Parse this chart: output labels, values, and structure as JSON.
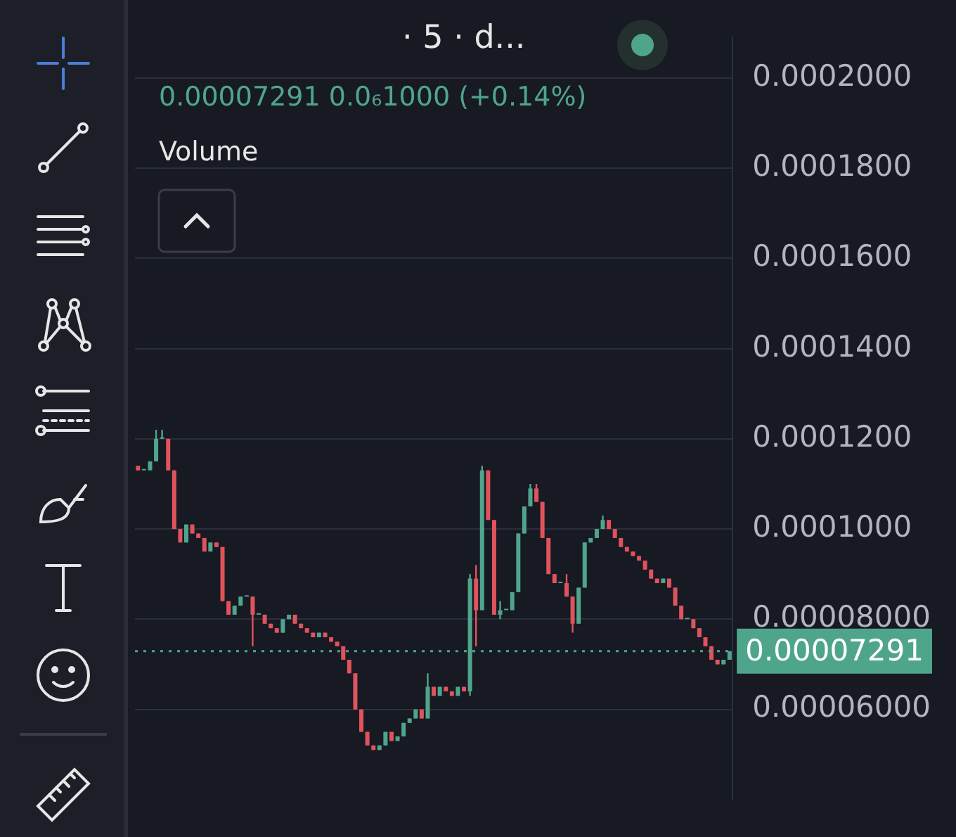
{
  "chart_data": {
    "type": "candlestick",
    "title": "· 5 · d...",
    "annotations": [
      "0.00007291 0.0₆1000 (+0.14%)",
      "Volume"
    ],
    "categories": [
      null,
      null,
      null,
      null,
      null,
      null,
      null,
      null,
      null,
      null,
      null,
      null,
      null,
      null,
      null,
      null,
      null,
      null,
      null,
      null,
      null,
      null,
      null,
      null,
      null,
      null,
      null,
      null,
      null,
      null,
      null,
      null,
      null,
      null,
      null,
      null,
      null,
      null,
      null,
      null,
      null,
      null,
      null,
      null,
      null,
      null,
      null,
      null,
      null,
      null,
      null,
      null,
      null,
      null,
      null,
      null,
      null,
      null,
      null,
      null,
      null,
      null,
      null,
      null,
      null,
      null,
      null,
      null,
      null,
      null,
      null,
      null,
      null,
      null,
      null,
      null,
      null,
      null,
      null,
      null,
      null,
      null,
      null,
      null,
      null,
      null,
      null,
      null,
      null,
      null,
      null,
      null,
      null,
      null,
      null,
      null,
      null,
      null,
      null
    ],
    "ohlc": [
      [
        0.000114,
        0.000114,
        0.000113,
        0.000113
      ],
      [
        0.000113,
        0.000113,
        0.000113,
        0.000113
      ],
      [
        0.000113,
        0.000115,
        0.000113,
        0.000115
      ],
      [
        0.000115,
        0.000122,
        0.000115,
        0.00012
      ],
      [
        0.00012,
        0.000122,
        0.00012,
        0.00012
      ],
      [
        0.00012,
        0.00012,
        0.000113,
        0.000113
      ],
      [
        0.000113,
        0.000113,
        0.0001,
        0.0001
      ],
      [
        0.0001,
        0.0001,
        9.7e-05,
        9.7e-05
      ],
      [
        9.7e-05,
        0.000101,
        9.7e-05,
        0.000101
      ],
      [
        0.000101,
        0.000101,
        9.9e-05,
        9.9e-05
      ],
      [
        9.9e-05,
        9.9e-05,
        9.8e-05,
        9.8e-05
      ],
      [
        9.8e-05,
        9.8e-05,
        9.5e-05,
        9.5e-05
      ],
      [
        9.5e-05,
        9.7e-05,
        9.5e-05,
        9.7e-05
      ],
      [
        9.7e-05,
        9.7e-05,
        9.6e-05,
        9.6e-05
      ],
      [
        9.6e-05,
        9.6e-05,
        8.4e-05,
        8.4e-05
      ],
      [
        8.4e-05,
        8.4e-05,
        8.1e-05,
        8.1e-05
      ],
      [
        8.1e-05,
        8.3e-05,
        8.1e-05,
        8.3e-05
      ],
      [
        8.3e-05,
        8.5e-05,
        8.3e-05,
        8.5e-05
      ],
      [
        8.5e-05,
        8.5e-05,
        8.5e-05,
        8.5e-05
      ],
      [
        8.5e-05,
        8.5e-05,
        7.4e-05,
        8.1e-05
      ],
      [
        8.1e-05,
        8.1e-05,
        8.1e-05,
        8.1e-05
      ],
      [
        8.1e-05,
        8.1e-05,
        7.9e-05,
        7.9e-05
      ],
      [
        7.9e-05,
        7.9e-05,
        7.8e-05,
        7.8e-05
      ],
      [
        7.8e-05,
        7.8e-05,
        7.7e-05,
        7.7e-05
      ],
      [
        7.7e-05,
        8e-05,
        7.7e-05,
        8e-05
      ],
      [
        8e-05,
        8.1e-05,
        8e-05,
        8.1e-05
      ],
      [
        8.1e-05,
        8.1e-05,
        7.9e-05,
        7.9e-05
      ],
      [
        7.9e-05,
        7.9e-05,
        7.8e-05,
        7.8e-05
      ],
      [
        7.8e-05,
        7.8e-05,
        7.7e-05,
        7.7e-05
      ],
      [
        7.7e-05,
        7.7e-05,
        7.6e-05,
        7.6e-05
      ],
      [
        7.6e-05,
        7.7e-05,
        7.6e-05,
        7.7e-05
      ],
      [
        7.7e-05,
        7.7e-05,
        7.6e-05,
        7.6e-05
      ],
      [
        7.6e-05,
        7.6e-05,
        7.5e-05,
        7.5e-05
      ],
      [
        7.5e-05,
        7.5e-05,
        7.4e-05,
        7.4e-05
      ],
      [
        7.4e-05,
        7.4e-05,
        7.1e-05,
        7.1e-05
      ],
      [
        7.1e-05,
        7.1e-05,
        6.8e-05,
        6.8e-05
      ],
      [
        6.8e-05,
        6.8e-05,
        6e-05,
        6e-05
      ],
      [
        6e-05,
        6e-05,
        5.5e-05,
        5.5e-05
      ],
      [
        5.5e-05,
        5.5e-05,
        5.2e-05,
        5.2e-05
      ],
      [
        5.2e-05,
        5.2e-05,
        5.1e-05,
        5.1e-05
      ],
      [
        5.1e-05,
        5.2e-05,
        5.1e-05,
        5.2e-05
      ],
      [
        5.2e-05,
        5.5e-05,
        5.2e-05,
        5.5e-05
      ],
      [
        5.5e-05,
        5.5e-05,
        5.3e-05,
        5.3e-05
      ],
      [
        5.3e-05,
        5.4e-05,
        5.3e-05,
        5.4e-05
      ],
      [
        5.4e-05,
        5.7e-05,
        5.4e-05,
        5.7e-05
      ],
      [
        5.7e-05,
        5.8e-05,
        5.7e-05,
        5.8e-05
      ],
      [
        5.8e-05,
        6e-05,
        5.8e-05,
        6e-05
      ],
      [
        6e-05,
        6e-05,
        5.8e-05,
        5.8e-05
      ],
      [
        5.8e-05,
        6.8e-05,
        5.8e-05,
        6.5e-05
      ],
      [
        6.5e-05,
        6.5e-05,
        6.3e-05,
        6.3e-05
      ],
      [
        6.3e-05,
        6.5e-05,
        6.3e-05,
        6.5e-05
      ],
      [
        6.5e-05,
        6.5e-05,
        6.4e-05,
        6.4e-05
      ],
      [
        6.4e-05,
        6.4e-05,
        6.3e-05,
        6.3e-05
      ],
      [
        6.3e-05,
        6.5e-05,
        6.3e-05,
        6.5e-05
      ],
      [
        6.5e-05,
        6.5e-05,
        6.4e-05,
        6.4e-05
      ],
      [
        6.4e-05,
        9e-05,
        6.3e-05,
        8.9e-05
      ],
      [
        8.9e-05,
        9.2e-05,
        7.4e-05,
        8.2e-05
      ],
      [
        8.2e-05,
        0.000114,
        8.2e-05,
        0.000113
      ],
      [
        0.000113,
        0.000113,
        0.000102,
        0.000102
      ],
      [
        0.000102,
        0.000102,
        8.1e-05,
        8.1e-05
      ],
      [
        8.1e-05,
        8.4e-05,
        8e-05,
        8.2e-05
      ],
      [
        8.2e-05,
        8.2e-05,
        8.2e-05,
        8.2e-05
      ],
      [
        8.2e-05,
        8.6e-05,
        8.2e-05,
        8.6e-05
      ],
      [
        8.6e-05,
        9.9e-05,
        8.6e-05,
        9.9e-05
      ],
      [
        9.9e-05,
        0.000105,
        9.9e-05,
        0.000105
      ],
      [
        0.000105,
        0.00011,
        0.000105,
        0.000109
      ],
      [
        0.000109,
        0.00011,
        0.000106,
        0.000106
      ],
      [
        0.000106,
        0.000106,
        9.8e-05,
        9.8e-05
      ],
      [
        9.8e-05,
        9.8e-05,
        9e-05,
        9e-05
      ],
      [
        9e-05,
        9e-05,
        8.8e-05,
        8.8e-05
      ],
      [
        8.8e-05,
        8.8e-05,
        8.8e-05,
        8.8e-05
      ],
      [
        8.8e-05,
        9e-05,
        8.5e-05,
        8.5e-05
      ],
      [
        8.5e-05,
        8.5e-05,
        7.7e-05,
        7.9e-05
      ],
      [
        7.9e-05,
        8.7e-05,
        7.9e-05,
        8.7e-05
      ],
      [
        8.7e-05,
        9.7e-05,
        8.7e-05,
        9.7e-05
      ],
      [
        9.7e-05,
        9.8e-05,
        9.7e-05,
        9.8e-05
      ],
      [
        9.8e-05,
        0.0001,
        9.8e-05,
        0.0001
      ],
      [
        0.0001,
        0.000103,
        0.0001,
        0.000102
      ],
      [
        0.000102,
        0.000102,
        0.0001,
        0.0001
      ],
      [
        0.0001,
        0.0001,
        9.8e-05,
        9.8e-05
      ],
      [
        9.8e-05,
        9.8e-05,
        9.6e-05,
        9.6e-05
      ],
      [
        9.6e-05,
        9.6e-05,
        9.5e-05,
        9.5e-05
      ],
      [
        9.5e-05,
        9.5e-05,
        9.4e-05,
        9.4e-05
      ],
      [
        9.4e-05,
        9.4e-05,
        9.3e-05,
        9.3e-05
      ],
      [
        9.3e-05,
        9.3e-05,
        9.1e-05,
        9.1e-05
      ],
      [
        9.1e-05,
        9.1e-05,
        8.9e-05,
        8.9e-05
      ],
      [
        8.9e-05,
        8.9e-05,
        8.8e-05,
        8.8e-05
      ],
      [
        8.8e-05,
        8.9e-05,
        8.8e-05,
        8.9e-05
      ],
      [
        8.9e-05,
        8.9e-05,
        8.7e-05,
        8.7e-05
      ],
      [
        8.7e-05,
        8.7e-05,
        8.3e-05,
        8.3e-05
      ],
      [
        8.3e-05,
        8.3e-05,
        8e-05,
        8e-05
      ],
      [
        8e-05,
        8e-05,
        8e-05,
        8e-05
      ],
      [
        8e-05,
        8e-05,
        7.8e-05,
        7.8e-05
      ],
      [
        7.8e-05,
        7.8e-05,
        7.6e-05,
        7.6e-05
      ],
      [
        7.6e-05,
        7.6e-05,
        7.4e-05,
        7.4e-05
      ],
      [
        7.4e-05,
        7.4e-05,
        7.1e-05,
        7.1e-05
      ],
      [
        7.1e-05,
        7.1e-05,
        7e-05,
        7e-05
      ],
      [
        7e-05,
        7.1e-05,
        7e-05,
        7.1e-05
      ],
      [
        7.1e-05,
        7.291e-05,
        7.1e-05,
        7.291e-05
      ]
    ],
    "ylim": [
      4e-05,
      0.000209
    ],
    "yticks": [
      {
        "value": 6e-05,
        "label": "0.00006000"
      },
      {
        "value": 8e-05,
        "label": "0.00008000"
      },
      {
        "value": 0.0001,
        "label": "0.0001000"
      },
      {
        "value": 0.00012,
        "label": "0.0001200"
      },
      {
        "value": 0.00014,
        "label": "0.0001400"
      },
      {
        "value": 0.00016,
        "label": "0.0001600"
      },
      {
        "value": 0.00018,
        "label": "0.0001800"
      },
      {
        "value": 0.0002,
        "label": "0.0002000"
      }
    ],
    "ref_lines": [
      {
        "axis": "y",
        "value": 7.291e-05,
        "label": "0.00007291",
        "color": "#4fa58c",
        "line_style": "dotted"
      }
    ],
    "grid": "y",
    "tick_labels": "y"
  }
}
